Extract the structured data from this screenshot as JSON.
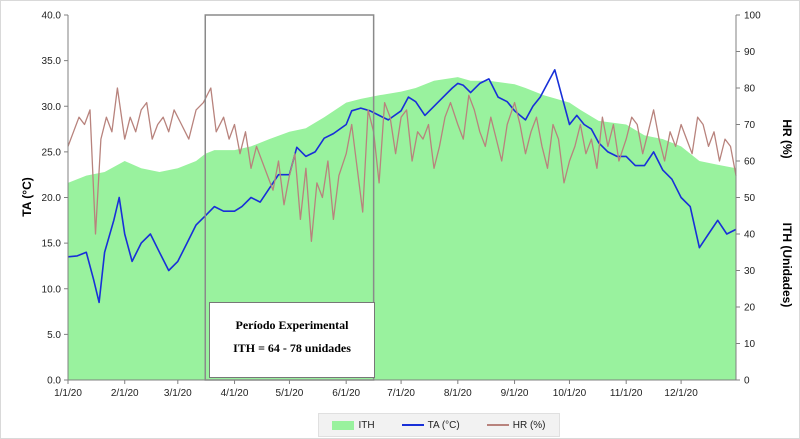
{
  "chart_data": {
    "type": "line",
    "x_tick_labels": [
      "1/1/20",
      "2/1/20",
      "3/1/20",
      "4/1/20",
      "5/1/20",
      "6/1/20",
      "7/1/20",
      "8/1/20",
      "9/1/20",
      "10/1/20",
      "11/1/20",
      "12/1/20"
    ],
    "x_tick_days": [
      0,
      31,
      60,
      91,
      121,
      152,
      182,
      213,
      244,
      274,
      305,
      335
    ],
    "x_range_days": [
      0,
      365
    ],
    "y_left": {
      "label": "TA (°C)",
      "range": [
        0,
        40
      ],
      "ticks": [
        "0.0",
        "5.0",
        "10.0",
        "15.0",
        "20.0",
        "25.0",
        "30.0",
        "35.0",
        "40.0"
      ]
    },
    "y_right": {
      "label_top": "HR (%)",
      "label_bottom": "ITH (Unidades)",
      "range": [
        0,
        100
      ],
      "ticks": [
        "0",
        "10",
        "20",
        "30",
        "40",
        "50",
        "60",
        "70",
        "80",
        "90",
        "100"
      ]
    },
    "series": [
      {
        "name": "ITH",
        "axis": "right",
        "style": "area",
        "color": "#99f29e",
        "x": [
          0,
          10,
          20,
          31,
          40,
          50,
          60,
          70,
          75,
          80,
          91,
          100,
          110,
          121,
          130,
          140,
          152,
          160,
          170,
          182,
          190,
          200,
          213,
          220,
          230,
          244,
          250,
          260,
          274,
          280,
          290,
          305,
          315,
          325,
          335,
          345,
          355,
          365
        ],
        "values": [
          54,
          56,
          57,
          60,
          58,
          57,
          58,
          60,
          62,
          63,
          63,
          64,
          66,
          68,
          69,
          72,
          76,
          77,
          78,
          79,
          80,
          82,
          83,
          82,
          82,
          81,
          80,
          78,
          76,
          74,
          71,
          70,
          67,
          66,
          64,
          60,
          59,
          58
        ]
      },
      {
        "name": "TA (°C)",
        "axis": "left",
        "style": "line",
        "color": "#1830d8",
        "x": [
          0,
          5,
          10,
          14,
          17,
          20,
          25,
          28,
          31,
          35,
          40,
          45,
          50,
          55,
          60,
          65,
          70,
          75,
          80,
          85,
          91,
          95,
          100,
          105,
          110,
          115,
          121,
          125,
          130,
          135,
          140,
          145,
          152,
          155,
          160,
          165,
          170,
          175,
          182,
          186,
          190,
          195,
          200,
          205,
          210,
          213,
          216,
          220,
          225,
          230,
          235,
          240,
          244,
          247,
          250,
          254,
          258,
          262,
          266,
          270,
          274,
          278,
          282,
          286,
          290,
          295,
          300,
          305,
          310,
          315,
          320,
          325,
          330,
          335,
          340,
          345,
          350,
          355,
          360,
          365
        ],
        "values": [
          13.5,
          13.6,
          14,
          11,
          8.5,
          14,
          17.5,
          20,
          16,
          13,
          15,
          16,
          14,
          12,
          13,
          15,
          17,
          18,
          19,
          18.5,
          18.5,
          19,
          20,
          19.5,
          21,
          22.5,
          22.5,
          25.5,
          24.5,
          25,
          26.5,
          27,
          28,
          29.5,
          29.8,
          29.5,
          29,
          28.5,
          29.5,
          31,
          30.5,
          29,
          30,
          31,
          32,
          32.5,
          32.3,
          31.5,
          32.5,
          33,
          31,
          30.5,
          29.5,
          29,
          28.5,
          30,
          31,
          32.5,
          34,
          31,
          28,
          29,
          28,
          27.5,
          26,
          25,
          24.5,
          24.5,
          23.5,
          23.5,
          25,
          23,
          22,
          20,
          19,
          14.5,
          16,
          17.5,
          16,
          16.5
        ]
      },
      {
        "name": "HR (%)",
        "axis": "right",
        "style": "line",
        "color": "#b8837d",
        "x": [
          0,
          3,
          6,
          9,
          12,
          15,
          18,
          21,
          24,
          27,
          31,
          34,
          37,
          40,
          43,
          46,
          49,
          52,
          55,
          58,
          62,
          66,
          70,
          74,
          78,
          81,
          85,
          88,
          91,
          94,
          97,
          100,
          103,
          106,
          109,
          112,
          115,
          118,
          121,
          124,
          127,
          130,
          133,
          136,
          139,
          142,
          145,
          148,
          152,
          155,
          158,
          161,
          164,
          167,
          170,
          173,
          176,
          179,
          182,
          185,
          188,
          191,
          194,
          197,
          200,
          203,
          206,
          209,
          213,
          216,
          219,
          222,
          225,
          228,
          231,
          234,
          237,
          240,
          244,
          247,
          250,
          253,
          256,
          259,
          262,
          265,
          268,
          271,
          274,
          277,
          280,
          283,
          286,
          289,
          292,
          295,
          298,
          301,
          305,
          308,
          311,
          314,
          317,
          320,
          323,
          326,
          329,
          332,
          335,
          338,
          341,
          344,
          347,
          350,
          353,
          356,
          359,
          362,
          365
        ],
        "values": [
          64,
          68,
          72,
          70,
          74,
          40,
          66,
          72,
          68,
          80,
          66,
          72,
          68,
          74,
          76,
          66,
          70,
          72,
          68,
          74,
          70,
          66,
          74,
          76,
          80,
          68,
          72,
          66,
          70,
          62,
          68,
          58,
          64,
          60,
          56,
          52,
          60,
          48,
          56,
          62,
          44,
          58,
          38,
          54,
          50,
          60,
          44,
          56,
          62,
          70,
          58,
          46,
          74,
          68,
          54,
          76,
          72,
          62,
          72,
          74,
          60,
          68,
          66,
          70,
          58,
          64,
          72,
          76,
          70,
          66,
          78,
          74,
          68,
          64,
          72,
          66,
          60,
          70,
          76,
          70,
          62,
          68,
          72,
          64,
          58,
          70,
          66,
          54,
          60,
          64,
          70,
          62,
          66,
          58,
          72,
          64,
          70,
          60,
          66,
          72,
          70,
          62,
          68,
          74,
          66,
          60,
          68,
          64,
          70,
          66,
          62,
          72,
          70,
          64,
          68,
          60,
          66,
          64,
          56
        ]
      }
    ],
    "annotation": {
      "line1": "Período Experimental",
      "line2": "ITH = 64 - 78 unidades",
      "x_start_days": 75,
      "x_end_days": 167
    },
    "legend": [
      "ITH",
      "TA (°C)",
      "HR (%)"
    ]
  }
}
